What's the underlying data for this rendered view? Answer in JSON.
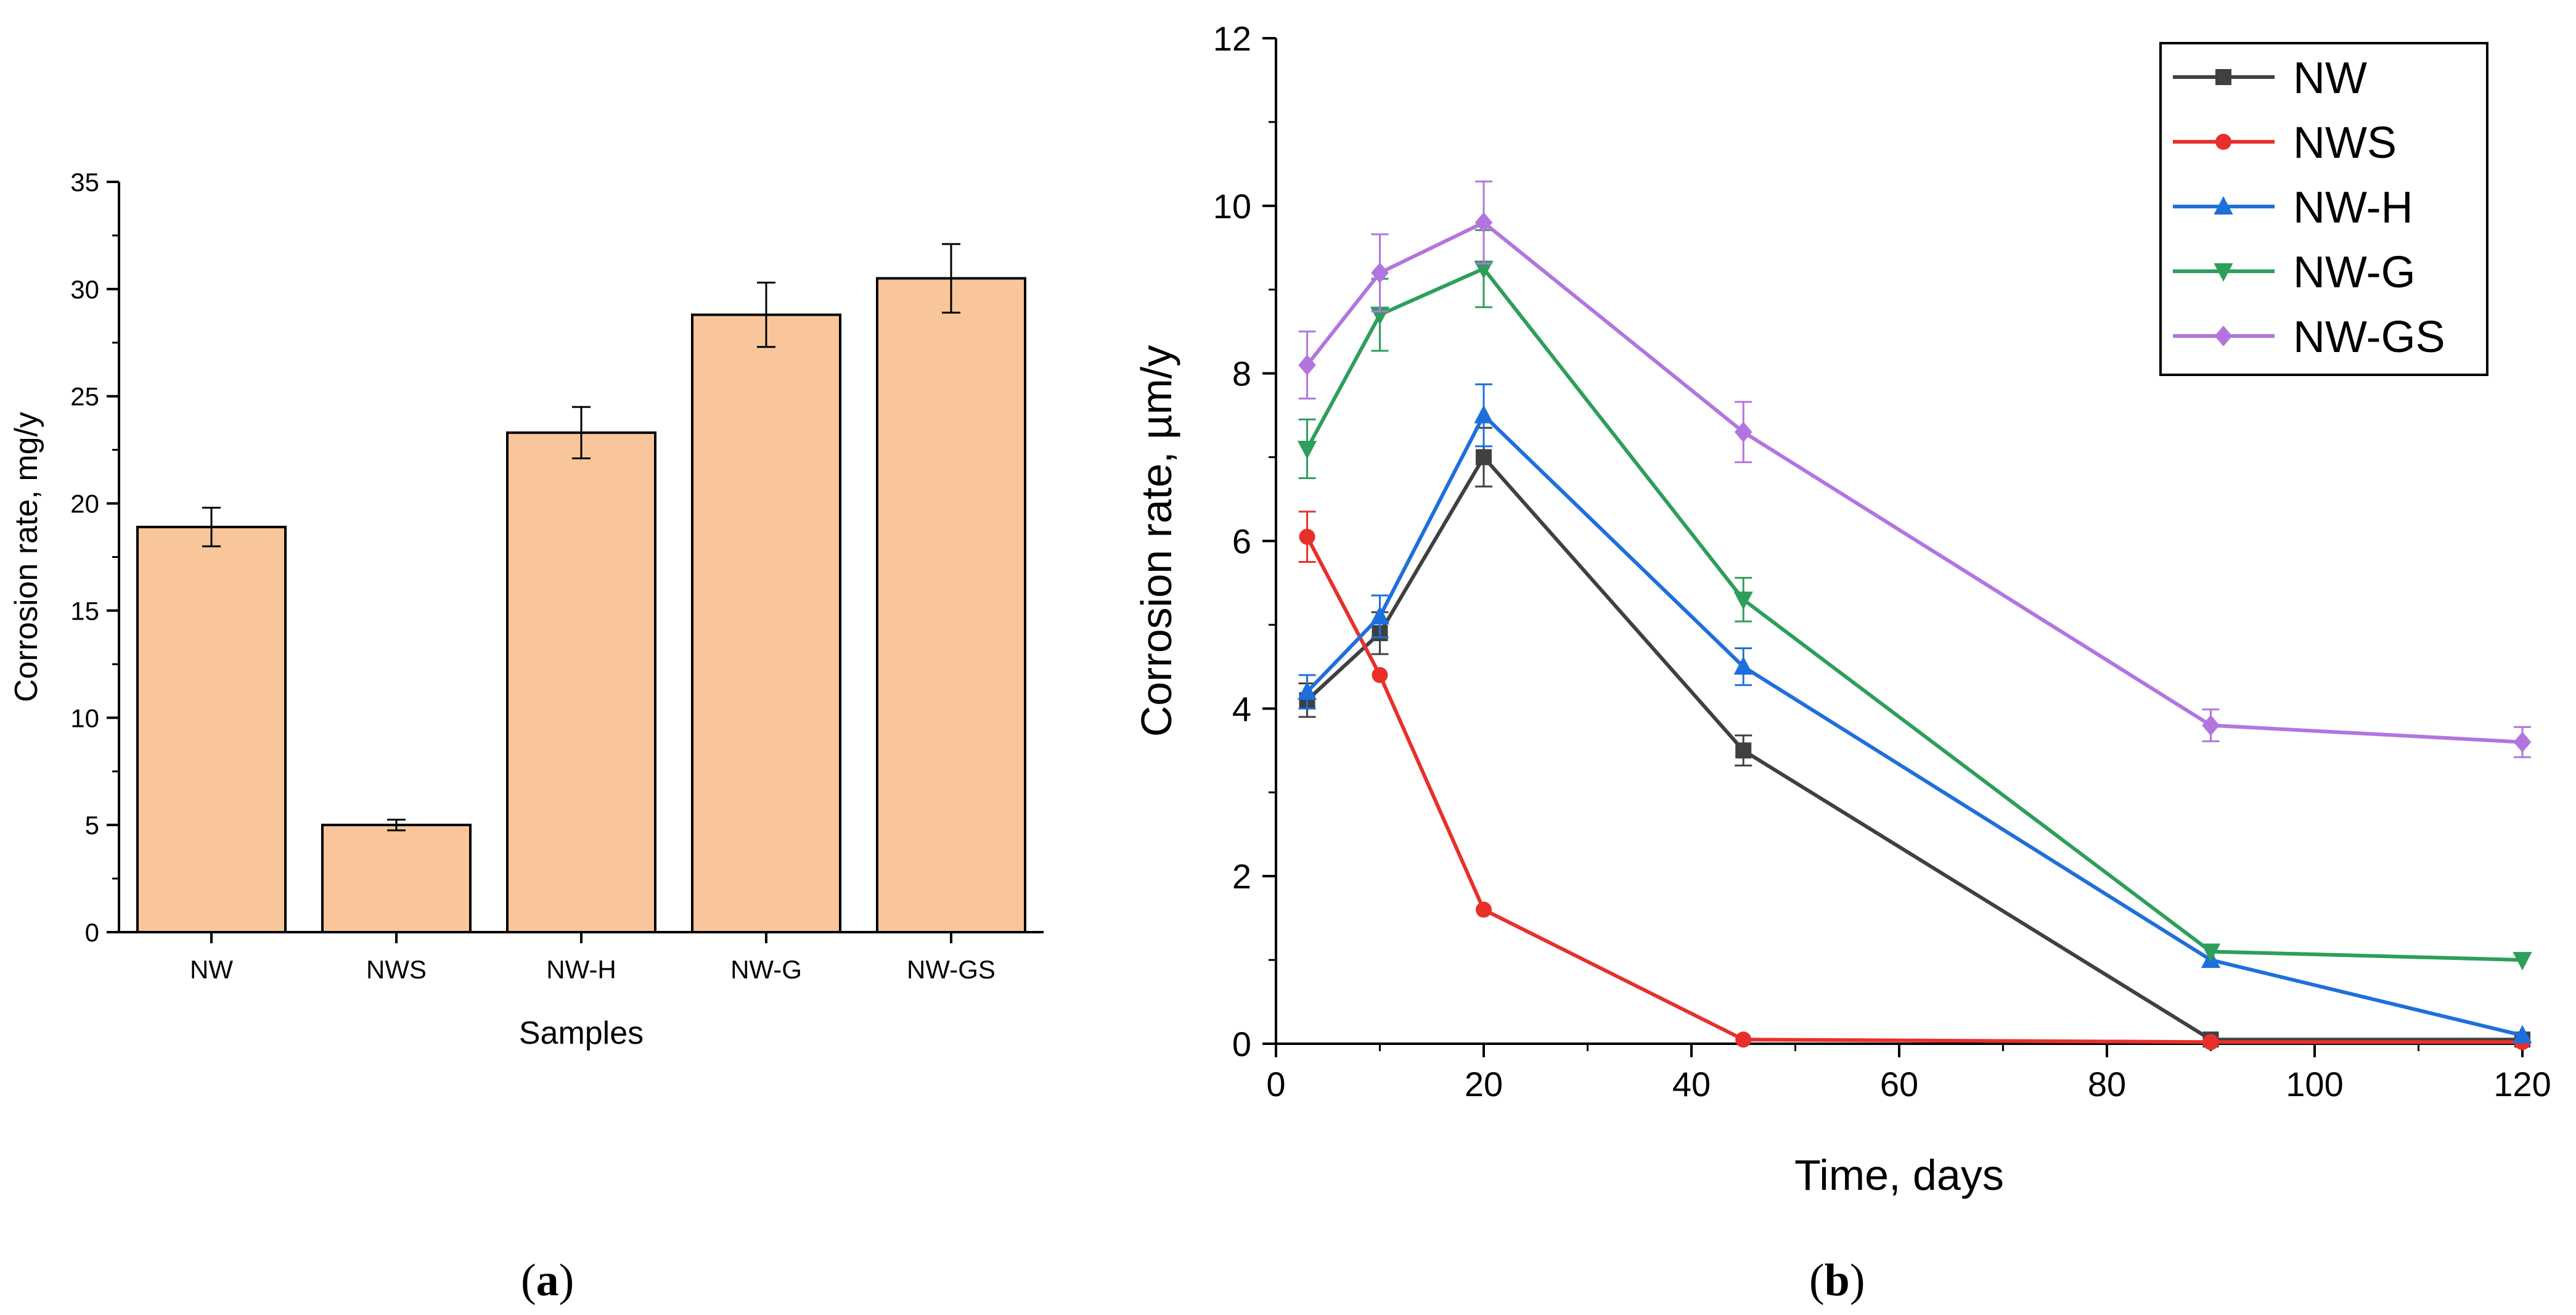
{
  "chart_data": [
    {
      "type": "bar",
      "panel_label": "a",
      "title": "",
      "xlabel": "Samples",
      "ylabel": "Corrosion rate, mg/y",
      "categories": [
        "NW",
        "NWS",
        "NW-H",
        "NW-G",
        "NW-GS"
      ],
      "values": [
        18.9,
        5.0,
        23.3,
        28.8,
        30.5
      ],
      "errors": [
        0.9,
        0.25,
        1.2,
        1.5,
        1.6
      ],
      "ylim": [
        0,
        35
      ],
      "yticks": [
        0,
        5,
        10,
        15,
        20,
        25,
        30,
        35
      ],
      "bar_color": "#f8c69a",
      "legend": false
    },
    {
      "type": "line",
      "panel_label": "b",
      "title": "",
      "xlabel": "Time, days",
      "ylabel": "Corrosion rate, µm/y",
      "xlim": [
        0,
        120
      ],
      "ylim": [
        0,
        12
      ],
      "xticks": [
        0,
        20,
        40,
        60,
        80,
        100,
        120
      ],
      "yticks": [
        0,
        2,
        4,
        6,
        8,
        10,
        12
      ],
      "legend_position": "top-right",
      "series": [
        {
          "name": "NW",
          "color": "#404040",
          "marker": "square",
          "x": [
            3,
            10,
            20,
            45,
            90,
            120
          ],
          "values": [
            4.1,
            4.9,
            7.0,
            3.5,
            0.05,
            0.05
          ],
          "errors": [
            0.2,
            0.25,
            0.35,
            0.18,
            0,
            0
          ]
        },
        {
          "name": "NWS",
          "color": "#e8302a",
          "marker": "circle",
          "x": [
            3,
            10,
            20,
            45,
            90,
            120
          ],
          "values": [
            6.05,
            4.4,
            1.6,
            0.05,
            0.02,
            0.02
          ],
          "errors": [
            0.3,
            0,
            0,
            0,
            0,
            0
          ]
        },
        {
          "name": "NW-H",
          "color": "#1f6fdb",
          "marker": "triangle-up",
          "x": [
            3,
            10,
            20,
            45,
            90,
            120
          ],
          "values": [
            4.2,
            5.1,
            7.5,
            4.5,
            1.0,
            0.1
          ],
          "errors": [
            0.2,
            0.25,
            0.37,
            0.22,
            0,
            0
          ]
        },
        {
          "name": "NW-G",
          "color": "#2e9e5b",
          "marker": "triangle-down",
          "x": [
            3,
            10,
            20,
            45,
            90,
            120
          ],
          "values": [
            7.1,
            8.7,
            9.25,
            5.3,
            1.1,
            1.0
          ],
          "errors": [
            0.35,
            0.43,
            0.46,
            0.26,
            0,
            0
          ]
        },
        {
          "name": "NW-GS",
          "color": "#b275e0",
          "marker": "diamond",
          "x": [
            3,
            10,
            20,
            45,
            90,
            120
          ],
          "values": [
            8.1,
            9.2,
            9.8,
            7.3,
            3.8,
            3.6
          ],
          "errors": [
            0.4,
            0.46,
            0.49,
            0.36,
            0.19,
            0.18
          ]
        }
      ]
    }
  ]
}
